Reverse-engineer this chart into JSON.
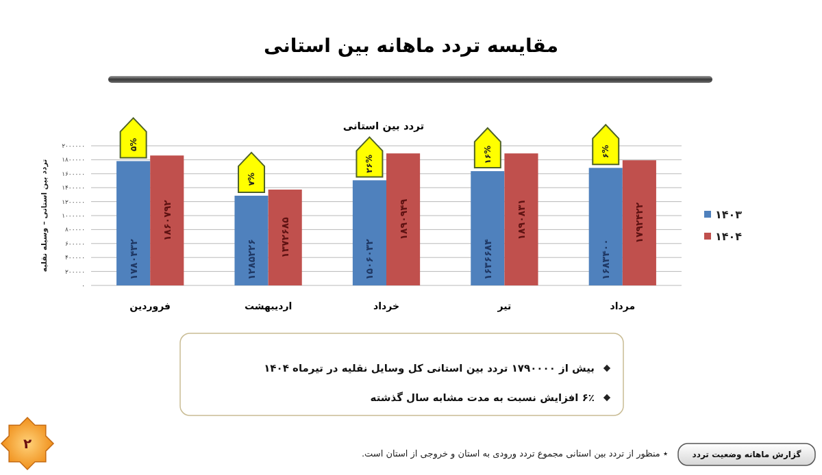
{
  "chart_data": {
    "type": "bar",
    "title": "مقایسه تردد ماهانه بین استانی",
    "subtitle": "تردد بین استانی",
    "ylabel": "تردد بین استانی – وسیله نقلیه",
    "categories": [
      "فروردین",
      "اردیبهشت",
      "خرداد",
      "تیر",
      "مرداد"
    ],
    "series": [
      {
        "name": "۱۴۰۳",
        "color": "#4f81bd",
        "values": [
          1780432,
          1285226,
          1506032,
          1636684,
          1683400
        ],
        "value_labels": [
          "۱۷۸۰۴۳۲",
          "۱۲۸۵۲۲۶",
          "۱۵۰۶۰۳۲",
          "۱۶۳۶۶۸۴",
          "۱۶۸۳۴۰۰"
        ]
      },
      {
        "name": "۱۴۰۴",
        "color": "#c0504d",
        "values": [
          1860792,
          1372685,
          1890949,
          1890831,
          1792422
        ],
        "value_labels": [
          "۱۸۶۰۷۹۲",
          "۱۳۷۲۶۸۵",
          "۱۸۹۰۹۴۹",
          "۱۸۹۰۸۳۱",
          "۱۷۹۲۴۲۲"
        ]
      }
    ],
    "ylim": [
      0,
      2000000
    ],
    "yticks": [
      {
        "value": 0,
        "label": "۰"
      },
      {
        "value": 200000,
        "label": "۲۰۰۰۰۰"
      },
      {
        "value": 400000,
        "label": "۴۰۰۰۰۰"
      },
      {
        "value": 600000,
        "label": "۶۰۰۰۰۰"
      },
      {
        "value": 800000,
        "label": "۸۰۰۰۰۰"
      },
      {
        "value": 1000000,
        "label": "۱۰۰۰۰۰۰"
      },
      {
        "value": 1200000,
        "label": "۱۲۰۰۰۰۰"
      },
      {
        "value": 1400000,
        "label": "۱۴۰۰۰۰۰"
      },
      {
        "value": 1600000,
        "label": "۱۶۰۰۰۰۰"
      },
      {
        "value": 1800000,
        "label": "۱۸۰۰۰۰۰"
      },
      {
        "value": 2000000,
        "label": "۲۰۰۰۰۰۰"
      }
    ],
    "grid": "y",
    "legend": "right",
    "annotations": [
      {
        "text": "۵%",
        "x": "فروردین",
        "y": 1780432
      },
      {
        "text": "۷%",
        "x": "اردیبهشت",
        "y": 1285226
      },
      {
        "text": "۲۶%",
        "x": "خرداد",
        "y": 1506032
      },
      {
        "text": "۱۶%",
        "x": "تیر",
        "y": 1636684
      },
      {
        "text": "۶%",
        "x": "مرداد",
        "y": 1683400
      },
      "بیش از ۱۷۹۰۰۰۰ تردد بین استانی کل وسایل نقلیه در تیرماه ۱۴۰۴",
      "۶٪ افزایش نسبت به مدت مشابه سال گذشته",
      "٭ منظور از تردد بین استانی مجموع تردد ورودی به استان و خروجی از استان است.",
      "گزارش ماهانه وضعیت تردد",
      "۲"
    ]
  }
}
